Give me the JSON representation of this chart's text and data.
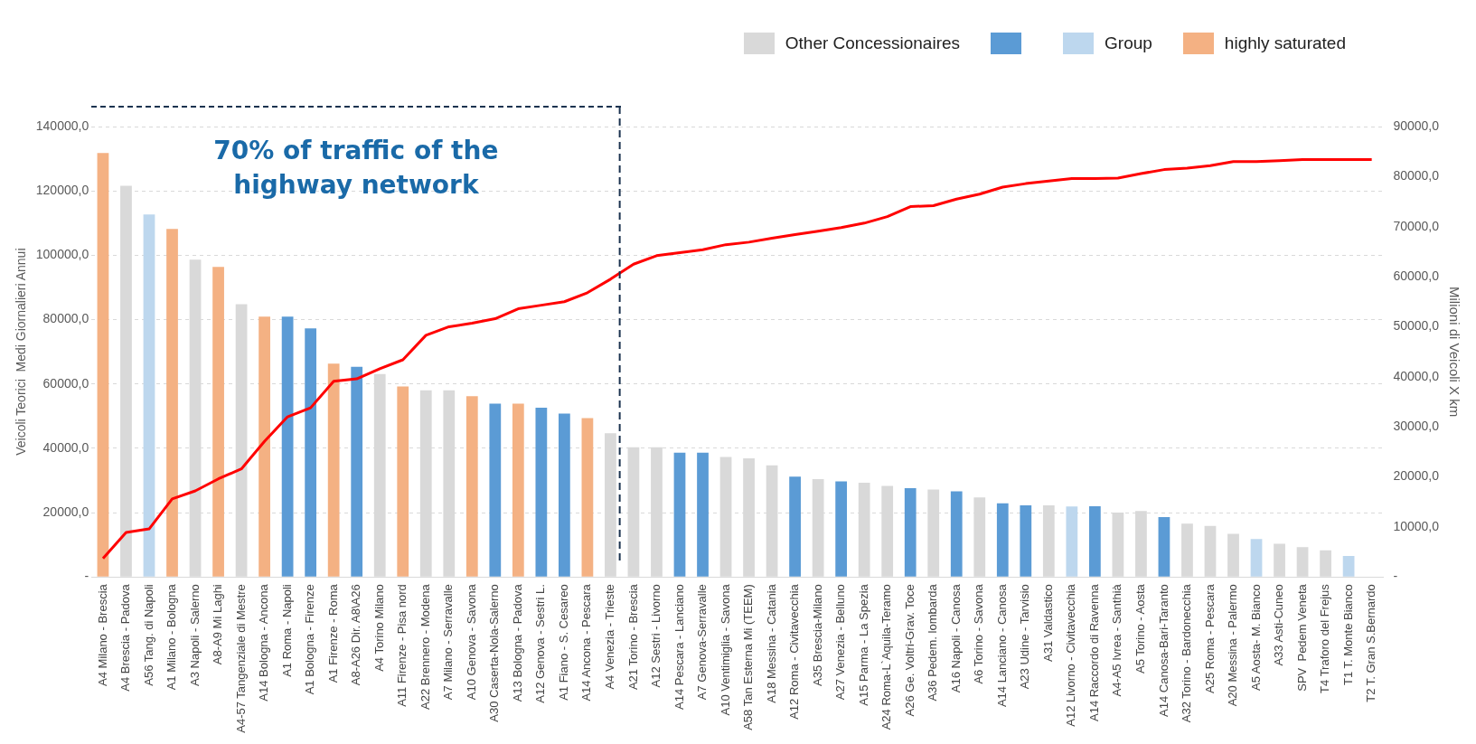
{
  "chart_data": {
    "type": "bar",
    "ylabel": "Veicoli Teorici  Medi Giornalieri Annui",
    "y2label": "Milioni di Veicoli X km",
    "categories": [
      "A4 Milano - Brescia",
      "A4 Brescia - Padova",
      "A56 Tang. di Napoli",
      "A1 Milano - Bologna",
      "A3 Napoli - Salerno",
      "A8-A9 Mi Laghi",
      "A4-57 Tangenziale di Mestre",
      "A14 Bologna - Ancona",
      "A1 Roma - Napoli",
      "A1 Bologna - Firenze",
      "A1 Firenze - Roma",
      "A8-A26 Dir. A8\\A26",
      "A4 Torino Milano",
      "A11 Firenze - Pisa nord",
      "A22 Brennero - Modena",
      "A7 Milano - Serravalle",
      "A10 Genova - Savona",
      "A30 Caserta-Nola-Salerno",
      "A13 Bologna - Padova",
      "A12 Genova - Sestri L.",
      "A1 Fiano - S. Cesareo",
      "A14 Ancona - Pescara",
      "A4 Venezia - Trieste",
      "A21 Torino - Brescia",
      "A12 Sestri - Livorno",
      "A14 Pescara - Lanciano",
      "A7 Genova-Serravalle",
      "A10 Ventimiglia - Savona",
      "A58 Tan Esterna Mi (TEEM)",
      "A18 Messina - Catania",
      "A12 Roma - Civitavecchia",
      "A35 Brescia-Milano",
      "A27 Venezia - Belluno",
      "A15 Parma - La Spezia",
      "A24 Roma-L`Aquila-Teramo",
      "A26 Ge. Voltri-Grav. Toce",
      "A36 Pedem. lombarda",
      "A16 Napoli - Canosa",
      "A6 Torino - Savona",
      "A14 Lanciano - Canosa",
      "A23 Udine - Tarvisio",
      "A31 Valdastico",
      "A12 Livorno - Civitavecchia",
      "A14 Raccordo di Ravenna",
      "A4-A5 Ivrea - Santhià",
      "A5 Torino - Aosta",
      "A14 Canosa-Bari-Taranto",
      "A32 Torino - Bardonecchia",
      "A25 Roma - Pescara",
      "A20 Messina - Palermo",
      "A5 Aosta- M. Bianco",
      "A33 Asti-Cuneo",
      "SPV  Pedem Veneta",
      "T4 Traforo del Frejus",
      "T1 T. Monte Bianco",
      "T2 T. Gran S.Bernardo"
    ],
    "series": [
      {
        "name": "Other Concessionaires",
        "color": "#d9d9d9",
        "values": [
          null,
          121600,
          null,
          null,
          98600,
          null,
          84800,
          null,
          null,
          null,
          null,
          null,
          63100,
          null,
          58000,
          58000,
          null,
          null,
          null,
          null,
          null,
          null,
          44700,
          40300,
          40300,
          null,
          null,
          37300,
          36900,
          34700,
          null,
          30400,
          null,
          29300,
          28300,
          null,
          27200,
          null,
          24700,
          null,
          null,
          22300,
          null,
          null,
          20000,
          20500,
          null,
          16600,
          15900,
          13400,
          null,
          10300,
          9300,
          8300,
          null,
          null
        ]
      },
      {
        "color": "#5b9bd5",
        "values": [
          null,
          null,
          null,
          null,
          null,
          null,
          null,
          null,
          80900,
          77300,
          null,
          65300,
          null,
          null,
          null,
          null,
          null,
          53900,
          null,
          52600,
          50800,
          null,
          null,
          null,
          null,
          38600,
          38600,
          null,
          null,
          null,
          31200,
          null,
          29700,
          null,
          null,
          27600,
          null,
          26600,
          null,
          22900,
          22300,
          null,
          null,
          22000,
          null,
          null,
          18600,
          null,
          null,
          null,
          null,
          null,
          null,
          null,
          null,
          null
        ]
      },
      {
        "name": "Group",
        "color": "#bdd7ee",
        "values": [
          null,
          null,
          112700,
          null,
          null,
          null,
          null,
          null,
          null,
          null,
          null,
          null,
          null,
          null,
          null,
          null,
          null,
          null,
          null,
          null,
          null,
          null,
          null,
          null,
          null,
          null,
          null,
          null,
          null,
          null,
          null,
          null,
          null,
          null,
          null,
          null,
          null,
          null,
          null,
          null,
          null,
          null,
          21900,
          null,
          null,
          null,
          null,
          null,
          null,
          null,
          11800,
          null,
          null,
          null,
          6500,
          null
        ]
      },
      {
        "name": "highly saturated",
        "color": "#f4b183",
        "values": [
          131800,
          null,
          null,
          108200,
          null,
          96400,
          null,
          80900,
          null,
          null,
          66300,
          null,
          null,
          59200,
          null,
          null,
          56200,
          null,
          53900,
          null,
          null,
          49400,
          null,
          null,
          null,
          null,
          null,
          null,
          null,
          null,
          null,
          null,
          null,
          null,
          null,
          null,
          null,
          null,
          null,
          null,
          null,
          null,
          null,
          null,
          null,
          null,
          null,
          null,
          null,
          null,
          null,
          null,
          null,
          null,
          null,
          null
        ]
      },
      {
        "type": "line",
        "axis": "y2",
        "color": "#ff0000",
        "values": [
          3700,
          8900,
          9600,
          15600,
          17200,
          19600,
          21600,
          27100,
          32000,
          33800,
          39100,
          39600,
          41600,
          43400,
          48300,
          50000,
          50700,
          51600,
          53600,
          54300,
          55000,
          56800,
          59500,
          62500,
          64200,
          64800,
          65400,
          66400,
          66900,
          67700,
          68400,
          69100,
          69800,
          70700,
          72000,
          74000,
          74200,
          75500,
          76500,
          77900,
          78600,
          79100,
          79600,
          79600,
          79700,
          80600,
          81400,
          81700,
          82200,
          83000,
          83000,
          83200,
          83400,
          83400,
          83400,
          83400
        ]
      }
    ],
    "ylim": [
      0,
      140000
    ],
    "yticks": [
      {
        "value": 0,
        "label": "-"
      },
      {
        "value": 20000,
        "label": "20000,0"
      },
      {
        "value": 40000,
        "label": "40000,0"
      },
      {
        "value": 60000,
        "label": "60000,0"
      },
      {
        "value": 80000,
        "label": "80000,0"
      },
      {
        "value": 100000,
        "label": "100000,0"
      },
      {
        "value": 120000,
        "label": "120000,0"
      },
      {
        "value": 140000,
        "label": "140000,0"
      }
    ],
    "y2lim": [
      0,
      90000
    ],
    "y2ticks": [
      {
        "value": 0,
        "label": "-"
      },
      {
        "value": 10000,
        "label": "10000,0"
      },
      {
        "value": 20000,
        "label": "20000,0"
      },
      {
        "value": 30000,
        "label": "30000,0"
      },
      {
        "value": 40000,
        "label": "40000,0"
      },
      {
        "value": 50000,
        "label": "50000,0"
      },
      {
        "value": 60000,
        "label": "60000,0"
      },
      {
        "value": 70000,
        "label": "70000,0"
      },
      {
        "value": 80000,
        "label": "80000,0"
      },
      {
        "value": 90000,
        "label": "90000,0"
      }
    ],
    "ref_lines": [
      {
        "axis": "x",
        "value": "A4 Venezia - Trieste",
        "color": "#1b3350",
        "line_style": "dashed"
      }
    ],
    "annotations": [
      "70% of traffic of the highway network"
    ],
    "grid": "y",
    "legend": "top right",
    "marker": "none",
    "line_style": "solid"
  }
}
